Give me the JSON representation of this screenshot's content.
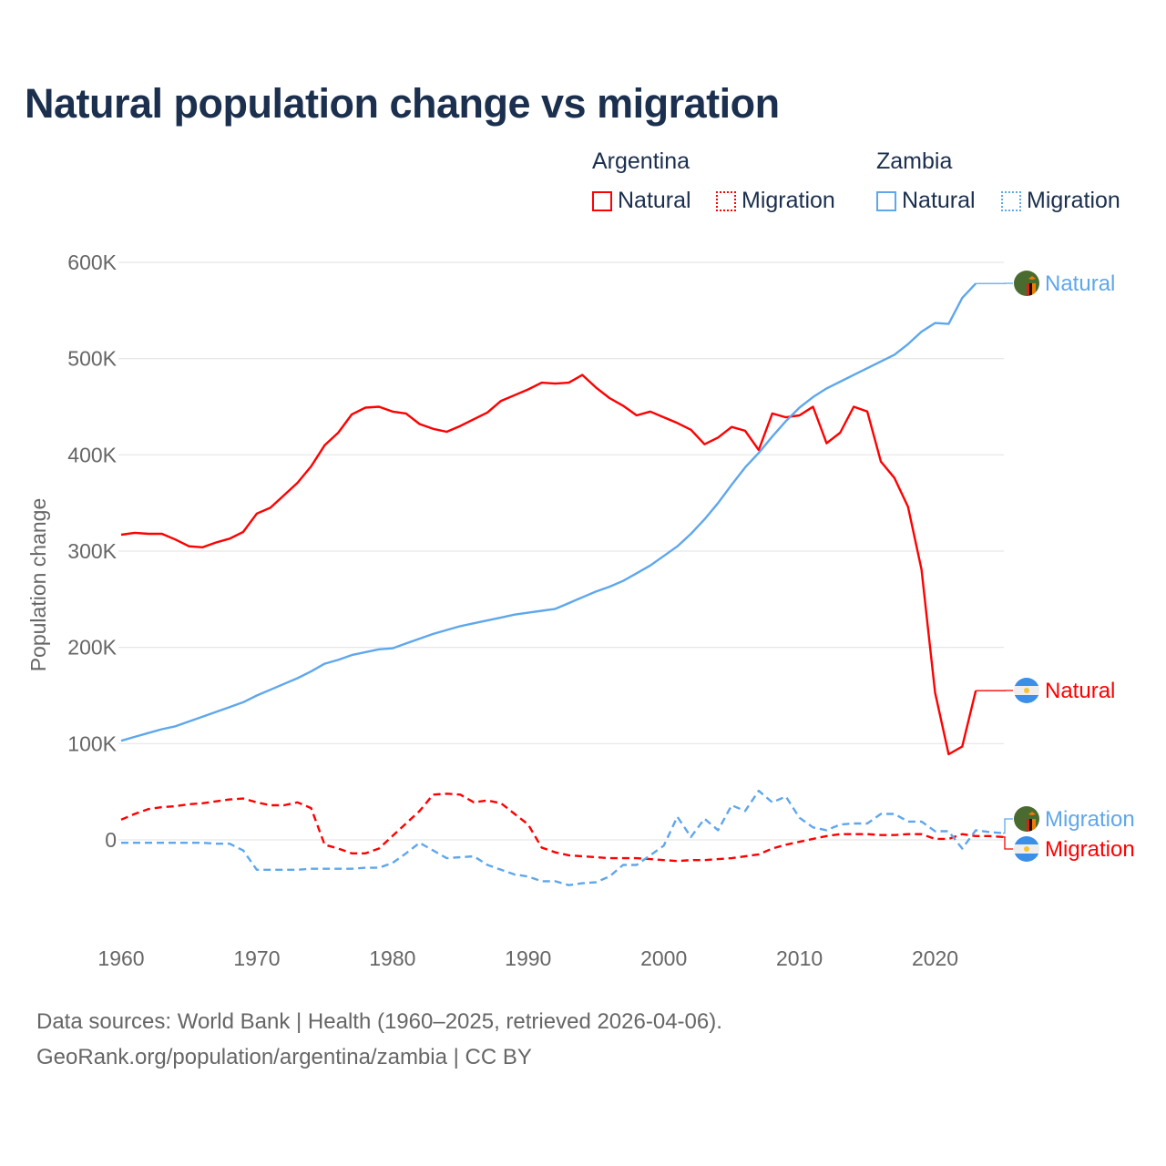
{
  "title": "Natural population change vs migration",
  "legend": {
    "groups": [
      {
        "name": "Argentina",
        "color": "#ff0000",
        "items": [
          "Natural",
          "Migration"
        ]
      },
      {
        "name": "Zambia",
        "color": "#5ea7ec",
        "items": [
          "Natural",
          "Migration"
        ]
      }
    ]
  },
  "end_labels": {
    "zambia_natural": "Natural",
    "argentina_natural": "Natural",
    "zambia_migration": "Migration",
    "argentina_migration": "Migration"
  },
  "footer": {
    "line1": "Data sources: World Bank | Health (1960–2025, retrieved 2026-04-06).",
    "line2": "GeoRank.org/population/argentina/zambia | CC BY"
  },
  "chart_data": {
    "type": "line",
    "title": "Natural population change vs migration",
    "xlabel": "",
    "ylabel": "Population change",
    "xlim": [
      1960,
      2025
    ],
    "ylim": [
      -80000,
      600000
    ],
    "grid": true,
    "legend_position": "top-right",
    "x_ticks": [
      1960,
      1970,
      1980,
      1990,
      2000,
      2010,
      2020
    ],
    "x_tick_labels": [
      "1960",
      "1970",
      "1980",
      "1990",
      "2000",
      "2010",
      "2020"
    ],
    "y_ticks": [
      0,
      100000,
      200000,
      300000,
      400000,
      500000,
      600000
    ],
    "y_tick_labels": [
      "0",
      "100K",
      "200K",
      "300K",
      "400K",
      "500K",
      "600K"
    ],
    "series": [
      {
        "name": "Argentina Natural",
        "country": "Argentina",
        "kind": "Natural",
        "color": "#ff0000",
        "dash": false,
        "start_year": 1960,
        "values_k": [
          317,
          319,
          318,
          318,
          312,
          305,
          304,
          309,
          313,
          320,
          339,
          345,
          358,
          371,
          388,
          410,
          423,
          442,
          449,
          450,
          445,
          443,
          432,
          427,
          424,
          430,
          437,
          444,
          456,
          462,
          468,
          475,
          474,
          475,
          483,
          470,
          459,
          451,
          441,
          445,
          439,
          433,
          426,
          411,
          418,
          429,
          425,
          405,
          443,
          439,
          441,
          450,
          412,
          423,
          450,
          445,
          393,
          376,
          346,
          281,
          153,
          89,
          97,
          155
        ]
      },
      {
        "name": "Argentina Migration",
        "country": "Argentina",
        "kind": "Migration",
        "color": "#ff0000",
        "dash": true,
        "start_year": 1960,
        "values_k": [
          21,
          27,
          32,
          34,
          35,
          37,
          38,
          40,
          42,
          43,
          39,
          36,
          36,
          39,
          33,
          -5,
          -9,
          -14,
          -14,
          -9,
          4,
          17,
          30,
          47,
          48,
          47,
          39,
          41,
          38,
          27,
          16,
          -8,
          -13,
          -16,
          -17,
          -18,
          -19,
          -19,
          -19,
          -20,
          -21,
          -22,
          -21,
          -21,
          -20,
          -19,
          -17,
          -15,
          -9,
          -5,
          -2,
          1,
          4,
          6,
          6,
          6,
          5,
          5,
          6,
          6,
          1,
          1,
          6,
          4,
          4,
          3
        ]
      },
      {
        "name": "Zambia Natural",
        "country": "Zambia",
        "kind": "Natural",
        "color": "#5ea7ec",
        "dash": false,
        "start_year": 1960,
        "values_k": [
          103,
          107,
          111,
          115,
          118,
          123,
          128,
          133,
          138,
          143,
          150,
          156,
          162,
          168,
          175,
          183,
          187,
          192,
          195,
          198,
          199,
          204,
          209,
          214,
          218,
          222,
          225,
          228,
          231,
          234,
          236,
          238,
          240,
          246,
          252,
          258,
          263,
          269,
          277,
          285,
          295,
          305,
          318,
          333,
          350,
          369,
          387,
          402,
          419,
          435,
          449,
          460,
          469,
          476,
          483,
          490,
          497,
          504,
          515,
          528,
          537,
          536,
          563,
          578
        ]
      },
      {
        "name": "Zambia Migration",
        "country": "Zambia",
        "kind": "Migration",
        "color": "#5ea7ec",
        "dash": true,
        "start_year": 1960,
        "values_k": [
          -3,
          -3,
          -3,
          -3,
          -3,
          -3,
          -3,
          -4,
          -4,
          -11,
          -31,
          -31,
          -31,
          -31,
          -30,
          -30,
          -30,
          -30,
          -29,
          -29,
          -24,
          -14,
          -3,
          -11,
          -19,
          -18,
          -17,
          -26,
          -31,
          -36,
          -38,
          -43,
          -43,
          -47,
          -45,
          -44,
          -38,
          -26,
          -26,
          -16,
          -6,
          24,
          3,
          22,
          10,
          36,
          30,
          51,
          39,
          45,
          23,
          13,
          10,
          16,
          17,
          17,
          27,
          27,
          19,
          19,
          9,
          9,
          -9,
          10,
          8,
          7
        ]
      }
    ]
  }
}
